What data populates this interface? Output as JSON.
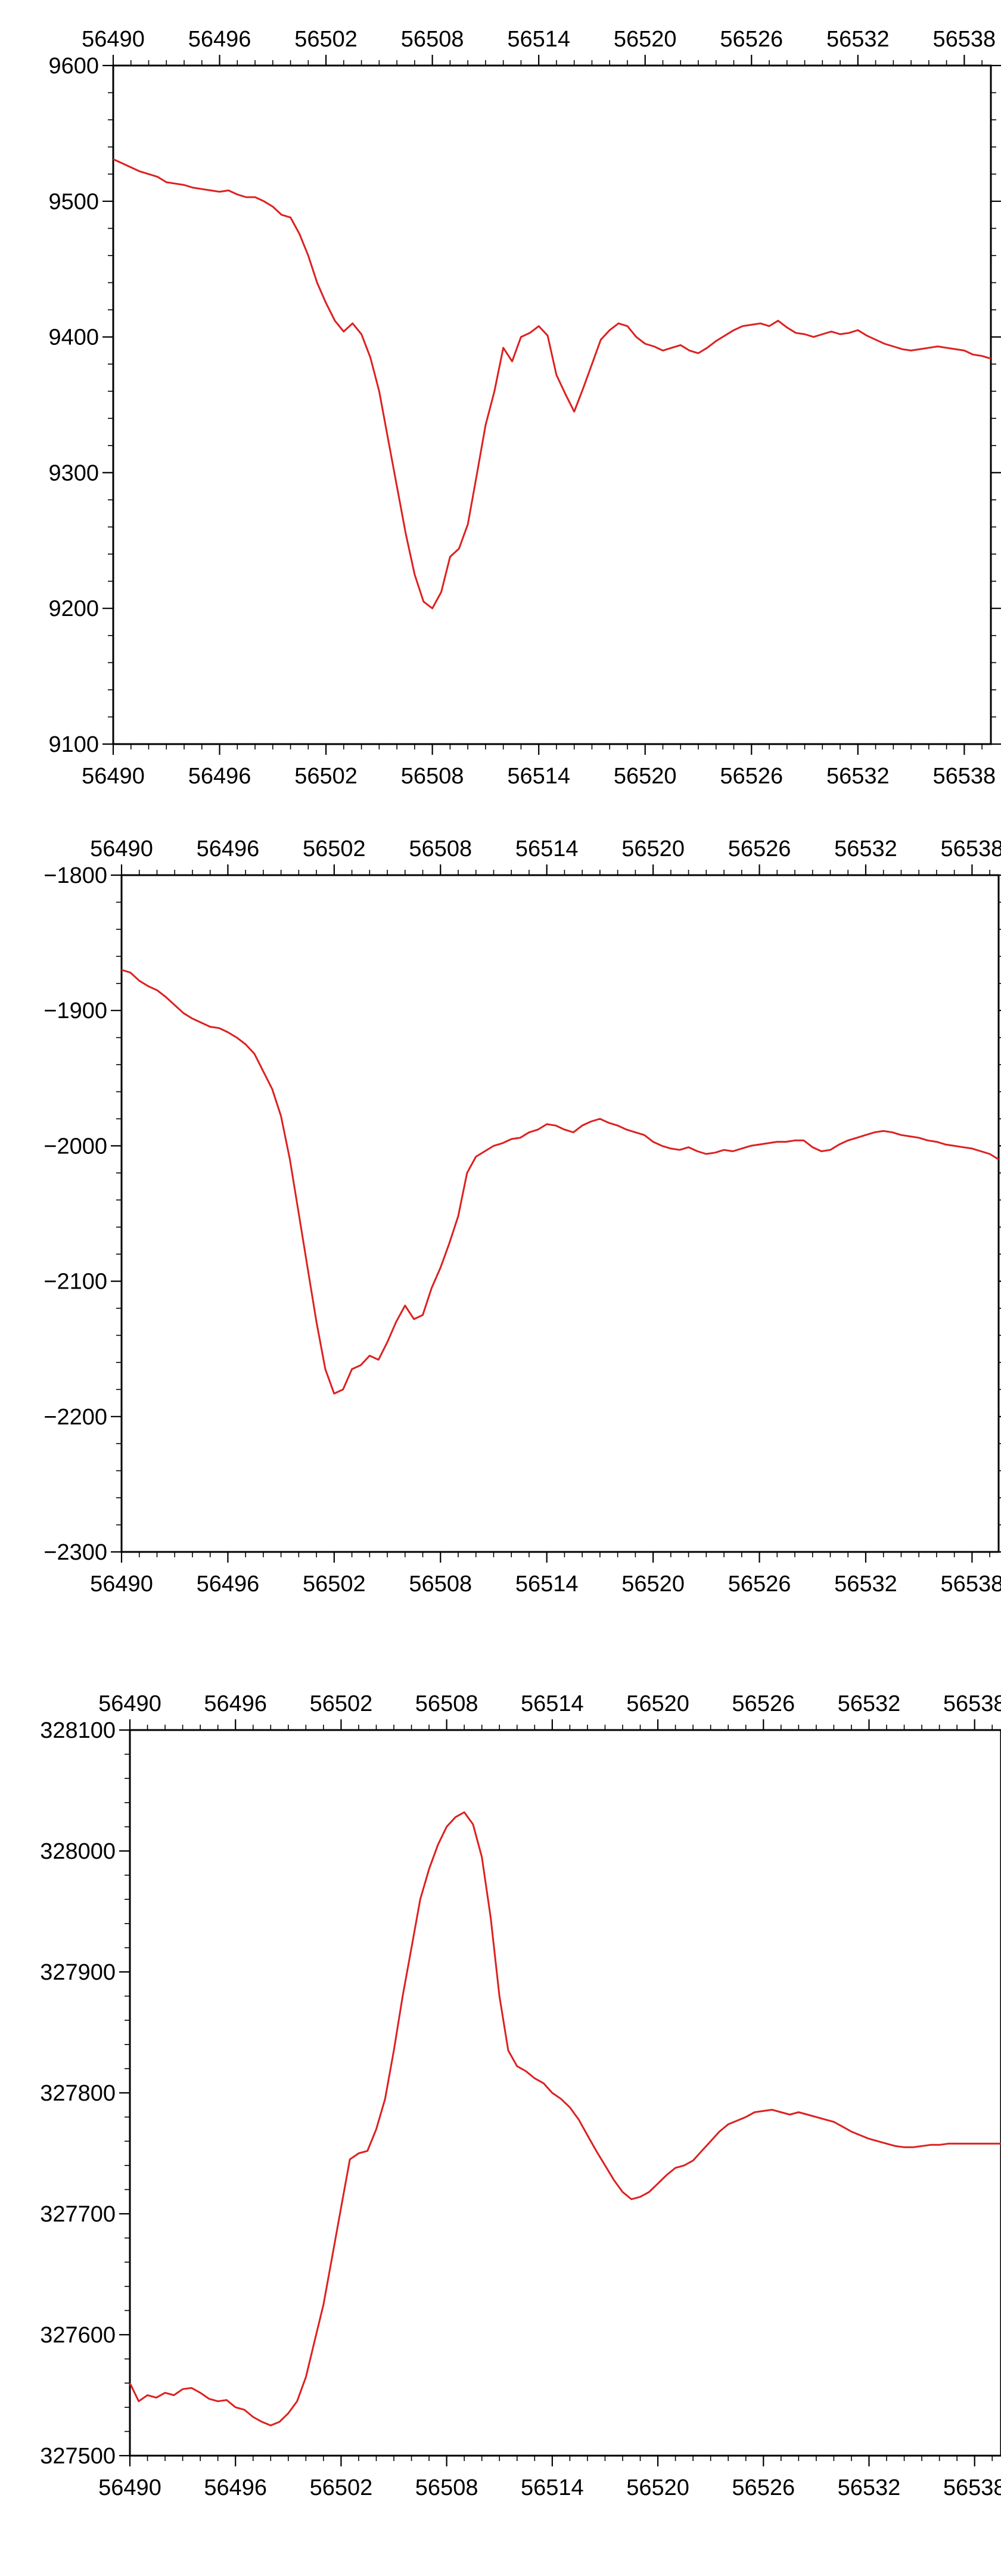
{
  "chart_data": [
    {
      "type": "line",
      "title": "",
      "xlabel": "",
      "ylabel": "",
      "xlim": [
        56490,
        56539.5
      ],
      "ylim": [
        9100,
        9600
      ],
      "xticks": [
        56490,
        56496,
        56502,
        56508,
        56514,
        56520,
        56526,
        56532,
        56538
      ],
      "yticks": [
        9100,
        9200,
        9300,
        9400,
        9500,
        9600
      ],
      "grid": false,
      "series_color": "#dd2020",
      "series": [
        {
          "x": [
            56490.0,
            56490.5,
            56491.0,
            56491.5,
            56492.0,
            56492.5,
            56493.0,
            56493.5,
            56494.0,
            56494.5,
            56495.0,
            56495.5,
            56496.0,
            56496.5,
            56497.0,
            56497.5,
            56498.0,
            56498.5,
            56499.0,
            56499.5,
            56500.0,
            56500.5,
            56501.0,
            56501.5,
            56502.0,
            56502.5,
            56503.0,
            56503.5,
            56504.0,
            56504.5,
            56505.0,
            56505.5,
            56506.0,
            56506.5,
            56507.0,
            56507.5,
            56508.0,
            56508.5,
            56509.0,
            56509.5,
            56510.0,
            56510.5,
            56511.0,
            56511.5,
            56512.0,
            56512.5,
            56513.0,
            56513.5,
            56514.0,
            56514.5,
            56515.0,
            56515.5,
            56516.0,
            56516.5,
            56517.0,
            56517.5,
            56518.0,
            56518.5,
            56519.0,
            56519.5,
            56520.0,
            56520.5,
            56521.0,
            56521.5,
            56522.0,
            56522.5,
            56523.0,
            56523.5,
            56524.0,
            56524.5,
            56525.0,
            56525.5,
            56526.0,
            56526.5,
            56527.0,
            56527.5,
            56528.0,
            56528.5,
            56529.0,
            56529.5,
            56530.0,
            56530.5,
            56531.0,
            56531.5,
            56532.0,
            56532.5,
            56533.0,
            56533.5,
            56534.0,
            56534.5,
            56535.0,
            56535.5,
            56536.0,
            56536.5,
            56537.0,
            56537.5,
            56538.0,
            56538.5,
            56539.0,
            56539.5
          ],
          "y": [
            9531,
            9528,
            9525,
            9522,
            9520,
            9518,
            9514,
            9513,
            9512,
            9510,
            9509,
            9508,
            9507,
            9508,
            9505,
            9503,
            9503,
            9500,
            9496,
            9490,
            9488,
            9476,
            9460,
            9440,
            9425,
            9412,
            9404,
            9410,
            9402,
            9385,
            9360,
            9325,
            9290,
            9255,
            9225,
            9205,
            9200,
            9212,
            9238,
            9244,
            9262,
            9298,
            9335,
            9360,
            9392,
            9382,
            9400,
            9403,
            9408,
            9401,
            9372,
            9358,
            9345,
            9362,
            9380,
            9398,
            9405,
            9410,
            9408,
            9400,
            9395,
            9393,
            9390,
            9392,
            9394,
            9390,
            9388,
            9392,
            9397,
            9401,
            9405,
            9408,
            9409,
            9410,
            9408,
            9412,
            9407,
            9403,
            9402,
            9400,
            9402,
            9404,
            9402,
            9403,
            9405,
            9401,
            9398,
            9395,
            9393,
            9391,
            9390,
            9391,
            9392,
            9393,
            9392,
            9391,
            9390,
            9387,
            9386,
            9384
          ]
        }
      ]
    },
    {
      "type": "line",
      "title": "",
      "xlabel": "",
      "ylabel": "",
      "xlim": [
        56490,
        56539.5
      ],
      "ylim": [
        -2300,
        -1800
      ],
      "xticks": [
        56490,
        56496,
        56502,
        56508,
        56514,
        56520,
        56526,
        56532,
        56538
      ],
      "yticks": [
        -2300,
        -2200,
        -2100,
        -2000,
        -1900,
        -1800
      ],
      "grid": false,
      "series_color": "#dd2020",
      "series": [
        {
          "x": [
            56490.0,
            56490.5,
            56491.0,
            56491.5,
            56492.0,
            56492.5,
            56493.0,
            56493.5,
            56494.0,
            56494.5,
            56495.0,
            56495.5,
            56496.0,
            56496.5,
            56497.0,
            56497.5,
            56498.0,
            56498.5,
            56499.0,
            56499.5,
            56500.0,
            56500.5,
            56501.0,
            56501.5,
            56502.0,
            56502.5,
            56503.0,
            56503.5,
            56504.0,
            56504.5,
            56505.0,
            56505.5,
            56506.0,
            56506.5,
            56507.0,
            56507.5,
            56508.0,
            56508.5,
            56509.0,
            56509.5,
            56510.0,
            56510.5,
            56511.0,
            56511.5,
            56512.0,
            56512.5,
            56513.0,
            56513.5,
            56514.0,
            56514.5,
            56515.0,
            56515.5,
            56516.0,
            56516.5,
            56517.0,
            56517.5,
            56518.0,
            56518.5,
            56519.0,
            56519.5,
            56520.0,
            56520.5,
            56521.0,
            56521.5,
            56522.0,
            56522.5,
            56523.0,
            56523.5,
            56524.0,
            56524.5,
            56525.0,
            56525.5,
            56526.0,
            56526.5,
            56527.0,
            56527.5,
            56528.0,
            56528.5,
            56529.0,
            56529.5,
            56530.0,
            56530.5,
            56531.0,
            56531.5,
            56532.0,
            56532.5,
            56533.0,
            56533.5,
            56534.0,
            56534.5,
            56535.0,
            56535.5,
            56536.0,
            56536.5,
            56537.0,
            56537.5,
            56538.0,
            56538.5,
            56539.0,
            56539.5
          ],
          "y": [
            -1870,
            -1872,
            -1878,
            -1882,
            -1885,
            -1890,
            -1896,
            -1902,
            -1906,
            -1909,
            -1912,
            -1913,
            -1916,
            -1920,
            -1925,
            -1932,
            -1945,
            -1958,
            -1978,
            -2010,
            -2050,
            -2090,
            -2130,
            -2165,
            -2183,
            -2180,
            -2165,
            -2162,
            -2155,
            -2158,
            -2145,
            -2130,
            -2118,
            -2128,
            -2125,
            -2105,
            -2090,
            -2072,
            -2052,
            -2020,
            -2008,
            -2004,
            -2000,
            -1998,
            -1995,
            -1994,
            -1990,
            -1988,
            -1984,
            -1985,
            -1988,
            -1990,
            -1985,
            -1982,
            -1980,
            -1983,
            -1985,
            -1988,
            -1990,
            -1992,
            -1997,
            -2000,
            -2002,
            -2003,
            -2001,
            -2004,
            -2006,
            -2005,
            -2003,
            -2004,
            -2002,
            -2000,
            -1999,
            -1998,
            -1997,
            -1997,
            -1996,
            -1996,
            -2001,
            -2004,
            -2003,
            -1999,
            -1996,
            -1994,
            -1992,
            -1990,
            -1989,
            -1990,
            -1992,
            -1993,
            -1994,
            -1996,
            -1997,
            -1999,
            -2000,
            -2001,
            -2002,
            -2004,
            -2006,
            -2010
          ]
        }
      ]
    },
    {
      "type": "line",
      "title": "",
      "xlabel": "",
      "ylabel": "",
      "xlim": [
        56490,
        56539.5
      ],
      "ylim": [
        327500,
        328100
      ],
      "xticks": [
        56490,
        56496,
        56502,
        56508,
        56514,
        56520,
        56526,
        56532,
        56538
      ],
      "yticks": [
        327500,
        327600,
        327700,
        327800,
        327900,
        328000,
        328100
      ],
      "grid": false,
      "series_color": "#dd2020",
      "series": [
        {
          "x": [
            56490.0,
            56490.5,
            56491.0,
            56491.5,
            56492.0,
            56492.5,
            56493.0,
            56493.5,
            56494.0,
            56494.5,
            56495.0,
            56495.5,
            56496.0,
            56496.5,
            56497.0,
            56497.5,
            56498.0,
            56498.5,
            56499.0,
            56499.5,
            56500.0,
            56500.5,
            56501.0,
            56501.5,
            56502.0,
            56502.5,
            56503.0,
            56503.5,
            56504.0,
            56504.5,
            56505.0,
            56505.5,
            56506.0,
            56506.5,
            56507.0,
            56507.5,
            56508.0,
            56508.5,
            56509.0,
            56509.5,
            56510.0,
            56510.5,
            56511.0,
            56511.5,
            56512.0,
            56512.5,
            56513.0,
            56513.5,
            56514.0,
            56514.5,
            56515.0,
            56515.5,
            56516.0,
            56516.5,
            56517.0,
            56517.5,
            56518.0,
            56518.5,
            56519.0,
            56519.5,
            56520.0,
            56520.5,
            56521.0,
            56521.5,
            56522.0,
            56522.5,
            56523.0,
            56523.5,
            56524.0,
            56524.5,
            56525.0,
            56525.5,
            56526.0,
            56526.5,
            56527.0,
            56527.5,
            56528.0,
            56528.5,
            56529.0,
            56529.5,
            56530.0,
            56530.5,
            56531.0,
            56531.5,
            56532.0,
            56532.5,
            56533.0,
            56533.5,
            56534.0,
            56534.5,
            56535.0,
            56535.5,
            56536.0,
            56536.5,
            56537.0,
            56537.5,
            56538.0,
            56538.5,
            56539.0,
            56539.5
          ],
          "y": [
            327560,
            327545,
            327550,
            327548,
            327552,
            327550,
            327555,
            327556,
            327552,
            327547,
            327545,
            327546,
            327540,
            327538,
            327532,
            327528,
            327525,
            327528,
            327535,
            327545,
            327565,
            327595,
            327625,
            327665,
            327705,
            327745,
            327750,
            327752,
            327770,
            327795,
            327835,
            327880,
            327920,
            327960,
            327985,
            328005,
            328020,
            328028,
            328032,
            328022,
            327995,
            327945,
            327880,
            327835,
            327822,
            327818,
            327812,
            327808,
            327800,
            327795,
            327788,
            327778,
            327765,
            327752,
            327740,
            327728,
            327718,
            327712,
            327714,
            327718,
            327725,
            327732,
            327738,
            327740,
            327744,
            327752,
            327760,
            327768,
            327774,
            327777,
            327780,
            327784,
            327785,
            327786,
            327784,
            327782,
            327784,
            327782,
            327780,
            327778,
            327776,
            327772,
            327768,
            327765,
            327762,
            327760,
            327758,
            327756,
            327755,
            327755,
            327756,
            327757,
            327757,
            327758,
            327758,
            327758,
            327758,
            327758,
            327758,
            327758
          ]
        }
      ]
    }
  ]
}
